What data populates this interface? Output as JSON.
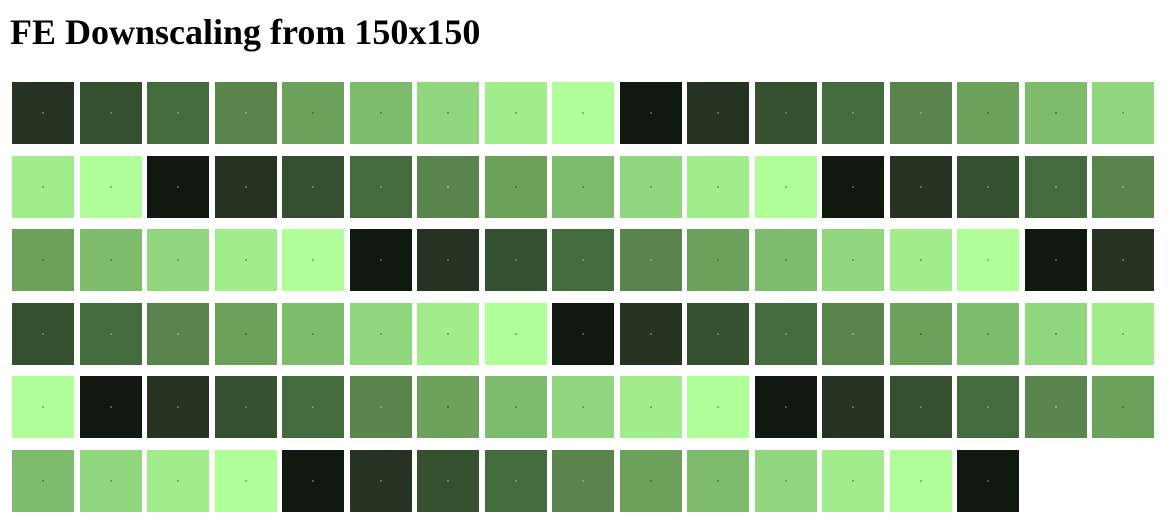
{
  "title": "FE Downscaling from 150x150",
  "palette": [
    "#0f190f",
    "#263322",
    "#34502f",
    "#446b3d",
    "#59854c",
    "#6ba15b",
    "#7cbc6c",
    "#8fd67d",
    "#a1ec8b",
    "#b0ff99"
  ],
  "tile_color_sequence": [
    1,
    2,
    3,
    4,
    5,
    6,
    7,
    8,
    9,
    0,
    1,
    2,
    3,
    4,
    5,
    6,
    7,
    8,
    9,
    0,
    1,
    2,
    3,
    4,
    5,
    6,
    7,
    8,
    9,
    0,
    1,
    2,
    3,
    4,
    5,
    6,
    7,
    8,
    9,
    0,
    1,
    2,
    3,
    4,
    5,
    6,
    7,
    8,
    9,
    0,
    1,
    2,
    3,
    4,
    5,
    6,
    7,
    8,
    9,
    0,
    1,
    2,
    3,
    4,
    5,
    6,
    7,
    8,
    9,
    0,
    1,
    2,
    3,
    4,
    5,
    6,
    7,
    8,
    9,
    0,
    1,
    2,
    3,
    4,
    5,
    6,
    7,
    8,
    9,
    0,
    1,
    2,
    3,
    4,
    5,
    6,
    7,
    8,
    9,
    0
  ]
}
